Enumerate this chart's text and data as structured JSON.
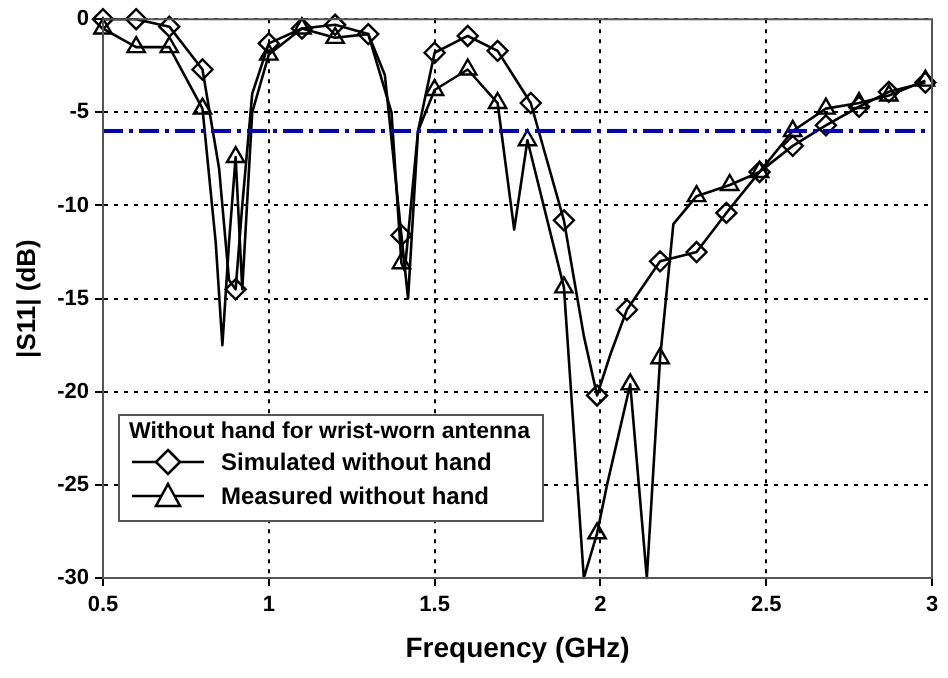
{
  "chart_data": {
    "type": "line",
    "xlabel": "Frequency (GHz)",
    "ylabel": "|S11| (dB)",
    "legend_title": "Without hand for wrist-worn antenna",
    "xlim": [
      0.5,
      3
    ],
    "xticks": [
      0.5,
      1,
      1.5,
      2,
      2.5,
      3
    ],
    "ylim": [
      -30,
      0
    ],
    "yticks": [
      -30,
      -25,
      -20,
      -15,
      -10,
      -5,
      0
    ],
    "grid": true,
    "legend": "bottom left",
    "ref_lines": [
      {
        "axis": "y",
        "value": -6,
        "color": "#0000cc",
        "line_style": "dashed"
      }
    ],
    "series": [
      {
        "type": "line",
        "color": "#000000",
        "marker": "none",
        "x": [
          0.5,
          0.6,
          0.7,
          0.8,
          0.85,
          0.88,
          0.9,
          0.92,
          0.95,
          1.0,
          1.1,
          1.2,
          1.3,
          1.35,
          1.4,
          1.42,
          1.45,
          1.5,
          1.6,
          1.69,
          1.79,
          1.89,
          1.95,
          1.99,
          2.03,
          2.08,
          2.18,
          2.29,
          2.38,
          2.48,
          2.58,
          2.68,
          2.78,
          2.87,
          2.98
        ],
        "values": [
          0,
          0,
          -0.4,
          -2.7,
          -8,
          -14,
          -14.5,
          -10,
          -4,
          -1.3,
          -0.5,
          -0.3,
          -0.8,
          -3,
          -11.6,
          -15,
          -6,
          -1.8,
          -0.9,
          -1.7,
          -4.5,
          -10.8,
          -17,
          -20.2,
          -18,
          -15.6,
          -13,
          -12.5,
          -10.4,
          -8.2,
          -6.8,
          -5.7,
          -4.7,
          -3.9,
          -3.4
        ]
      },
      {
        "type": "line",
        "color": "#000000",
        "marker": "none",
        "x": [
          0.5,
          0.6,
          0.7,
          0.8,
          0.84,
          0.86,
          0.88,
          0.9,
          0.92,
          0.95,
          1.0,
          1.1,
          1.2,
          1.3,
          1.37,
          1.4,
          1.41,
          1.45,
          1.5,
          1.6,
          1.69,
          1.74,
          1.78,
          1.89,
          1.95,
          1.99,
          2.02,
          2.09,
          2.14,
          2.18,
          2.22,
          2.29,
          2.39,
          2.48,
          2.58,
          2.68,
          2.78,
          2.87,
          2.98
        ],
        "values": [
          -0.5,
          -1.5,
          -1.5,
          -4.8,
          -12,
          -17.5,
          -12,
          -7.4,
          -14.5,
          -5,
          -1.9,
          -0.5,
          -1,
          -0.8,
          -5,
          -13.1,
          -13.5,
          -6,
          -3.8,
          -2.7,
          -4.5,
          -11.3,
          -6.5,
          -14.4,
          -30,
          -27.6,
          -25,
          -19.6,
          -30,
          -18.2,
          -11,
          -9.5,
          -8.9,
          -8.2,
          -6,
          -4.8,
          -4.5,
          -4.1,
          -3.3
        ]
      },
      {
        "type": "scatter",
        "name": "Simulated without hand",
        "color": "#000000",
        "marker": "diamond",
        "x": [
          0.5,
          0.6,
          0.7,
          0.8,
          0.9,
          1.0,
          1.1,
          1.2,
          1.3,
          1.4,
          1.5,
          1.6,
          1.69,
          1.79,
          1.89,
          1.99,
          2.08,
          2.18,
          2.29,
          2.38,
          2.48,
          2.58,
          2.68,
          2.78,
          2.87,
          2.98
        ],
        "values": [
          0,
          0,
          -0.4,
          -2.7,
          -14.5,
          -1.3,
          -0.5,
          -0.3,
          -0.8,
          -11.6,
          -1.8,
          -0.9,
          -1.7,
          -4.5,
          -10.8,
          -20.2,
          -15.6,
          -13,
          -12.5,
          -10.4,
          -8.2,
          -6.8,
          -5.7,
          -4.7,
          -3.9,
          -3.4
        ]
      },
      {
        "type": "scatter",
        "name": "Measured without hand",
        "color": "#000000",
        "marker": "triangle",
        "x": [
          0.5,
          0.6,
          0.7,
          0.8,
          0.9,
          1.0,
          1.1,
          1.2,
          1.4,
          1.5,
          1.6,
          1.69,
          1.78,
          1.89,
          1.99,
          2.09,
          2.18,
          2.29,
          2.39,
          2.48,
          2.58,
          2.68,
          2.78,
          2.87,
          2.98
        ],
        "values": [
          -0.5,
          -1.5,
          -1.5,
          -4.8,
          -7.4,
          -1.9,
          -0.5,
          -1,
          -13.1,
          -3.8,
          -2.7,
          -4.5,
          -6.5,
          -14.4,
          -27.6,
          -19.6,
          -18.2,
          -9.5,
          -8.9,
          -8.2,
          -6,
          -4.8,
          -4.5,
          -4.1,
          -3.3
        ]
      }
    ]
  }
}
